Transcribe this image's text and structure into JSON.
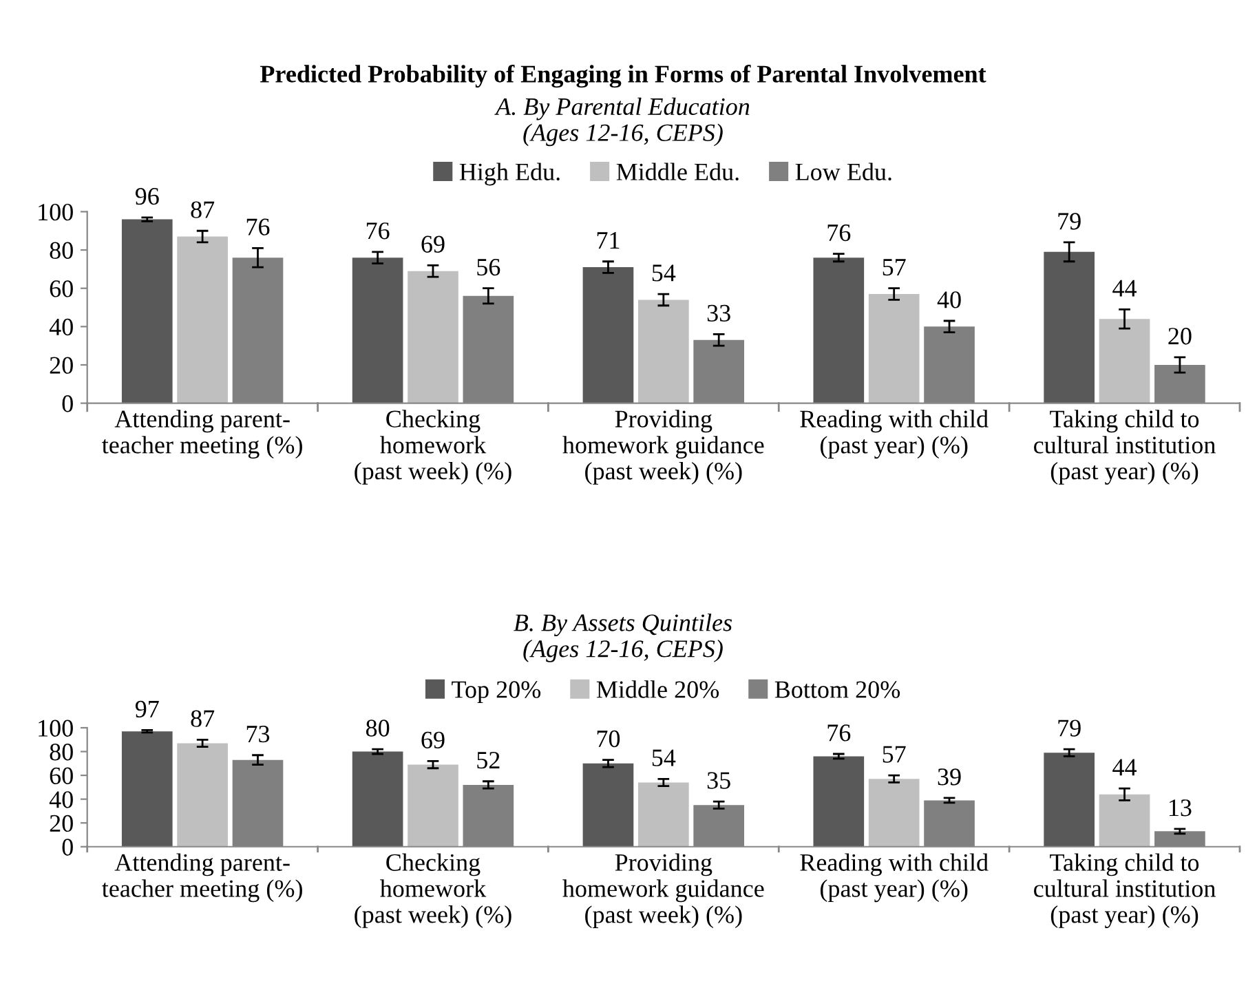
{
  "chart_data": [
    {
      "type": "bar",
      "title": "Predicted Probability of Engaging in Forms of Parental Involvement",
      "subtitle": "A. By Parental Education\n(Ages 12-16, CEPS)",
      "categories": [
        "Attending parent-\nteacher meeting (%)",
        "Checking\nhomework\n(past week) (%)",
        "Providing\nhomework guidance\n(past week) (%)",
        "Reading with child\n(past year) (%)",
        "Taking child to\ncultural institution\n(past year) (%)"
      ],
      "series": [
        {
          "name": "High Edu.",
          "color": "#595959",
          "values": [
            96,
            76,
            71,
            76,
            79
          ],
          "errors": [
            1,
            3,
            3,
            2,
            5
          ]
        },
        {
          "name": "Middle Edu.",
          "color": "#bfbfbf",
          "values": [
            87,
            69,
            54,
            57,
            44
          ],
          "errors": [
            3,
            3,
            3,
            3,
            5
          ]
        },
        {
          "name": "Low Edu.",
          "color": "#808080",
          "values": [
            76,
            56,
            33,
            40,
            20
          ],
          "errors": [
            5,
            4,
            3,
            3,
            4
          ]
        }
      ],
      "ylim": [
        0,
        100
      ],
      "yticks": [
        0,
        20,
        40,
        60,
        80,
        100
      ],
      "grid": false,
      "legend": "top",
      "data_labels": true
    },
    {
      "type": "bar",
      "subtitle": "B. By Assets Quintiles\n(Ages 12-16, CEPS)",
      "categories": [
        "Attending parent-\nteacher meeting (%)",
        "Checking\nhomework\n(past week) (%)",
        "Providing\nhomework guidance\n(past week) (%)",
        "Reading with child\n(past year) (%)",
        "Taking child to\ncultural institution\n(past year) (%)"
      ],
      "series": [
        {
          "name": "Top 20%",
          "color": "#595959",
          "values": [
            97,
            80,
            70,
            76,
            79
          ],
          "errors": [
            1,
            2,
            3,
            2,
            3
          ]
        },
        {
          "name": "Middle 20%",
          "color": "#bfbfbf",
          "values": [
            87,
            69,
            54,
            57,
            44
          ],
          "errors": [
            3,
            3,
            3,
            3,
            5
          ]
        },
        {
          "name": "Bottom 20%",
          "color": "#808080",
          "values": [
            73,
            52,
            35,
            39,
            13
          ],
          "errors": [
            4,
            3,
            3,
            2,
            2
          ]
        }
      ],
      "ylim": [
        0,
        100
      ],
      "yticks": [
        0,
        20,
        40,
        60,
        80,
        100
      ],
      "grid": false,
      "legend": "top",
      "data_labels": true
    }
  ]
}
